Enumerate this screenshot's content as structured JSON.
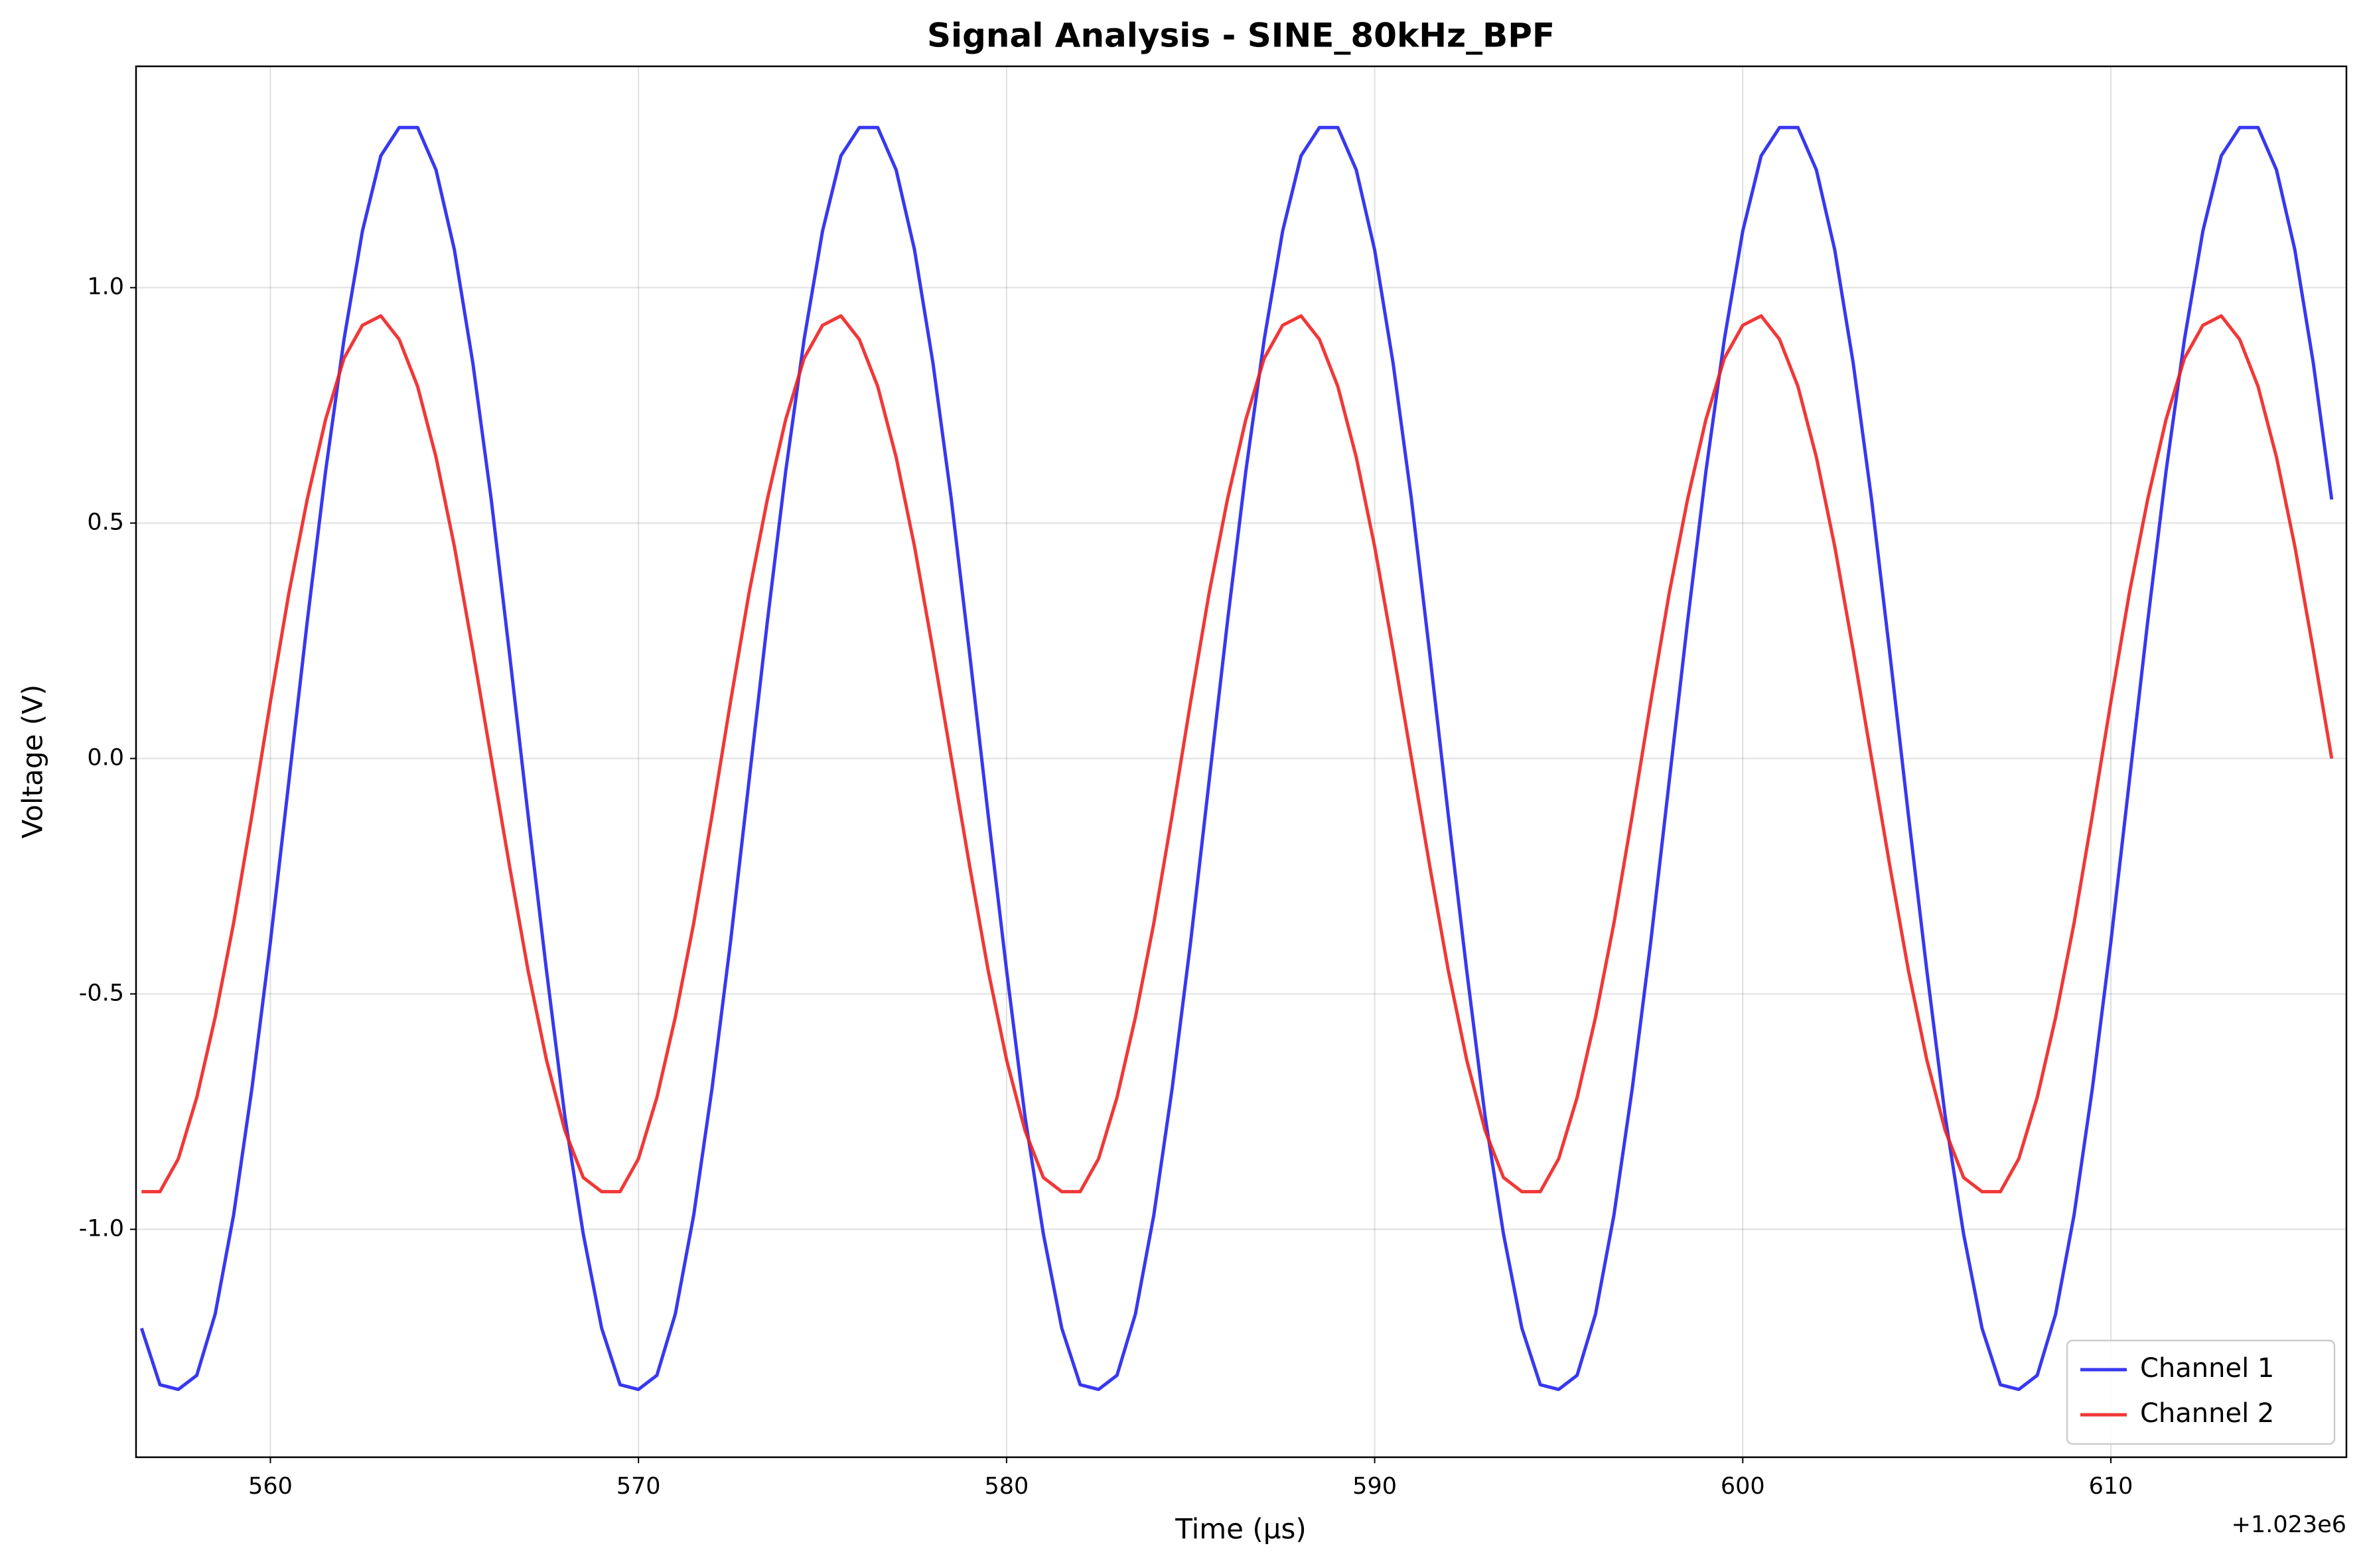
{
  "chart_data": {
    "type": "line",
    "title": "Signal Analysis - SINE_80kHz_BPF",
    "x_label": "Time (µs)",
    "y_label": "Voltage (V)",
    "x_offset_label": "+1.023e6",
    "x": [
      1023556.5,
      1023557,
      1023557.5,
      1023558,
      1023558.5,
      1023559,
      1023559.5,
      1023560,
      1023560.5,
      1023561,
      1023561.5,
      1023562,
      1023562.5,
      1023563,
      1023563.5,
      1023564,
      1023564.5,
      1023565,
      1023565.5,
      1023566,
      1023566.5,
      1023567,
      1023567.5,
      1023568,
      1023568.5,
      1023569,
      1023569.5,
      1023570,
      1023570.5,
      1023571,
      1023571.5,
      1023572,
      1023572.5,
      1023573,
      1023573.5,
      1023574,
      1023574.5,
      1023575,
      1023575.5,
      1023576,
      1023576.5,
      1023577,
      1023577.5,
      1023578,
      1023578.5,
      1023579,
      1023579.5,
      1023580,
      1023580.5,
      1023581,
      1023581.5,
      1023582,
      1023582.5,
      1023583,
      1023583.5,
      1023584,
      1023584.5,
      1023585,
      1023585.5,
      1023586,
      1023586.5,
      1023587,
      1023587.5,
      1023588,
      1023588.5,
      1023589,
      1023589.5,
      1023590,
      1023590.5,
      1023591,
      1023591.5,
      1023592,
      1023592.5,
      1023593,
      1023593.5,
      1023594,
      1023594.5,
      1023595,
      1023595.5,
      1023596,
      1023596.5,
      1023597,
      1023597.5,
      1023598,
      1023598.5,
      1023599,
      1023599.5,
      1023600,
      1023600.5,
      1023601,
      1023601.5,
      1023602,
      1023602.5,
      1023603,
      1023603.5,
      1023604,
      1023604.5,
      1023605,
      1023605.5,
      1023606,
      1023606.5,
      1023607,
      1023607.5,
      1023608,
      1023608.5,
      1023609,
      1023609.5,
      1023610,
      1023610.5,
      1023611,
      1023611.5,
      1023612,
      1023612.5,
      1023613,
      1023613.5,
      1023614,
      1023614.5,
      1023615,
      1023615.5,
      1023616
    ],
    "series": [
      {
        "name": "Channel 1",
        "color": "#2222ee",
        "values": [
          -1.21,
          -1.33,
          -1.34,
          -1.31,
          -1.18,
          -0.97,
          -0.7,
          -0.39,
          -0.05,
          0.29,
          0.61,
          0.89,
          1.12,
          1.28,
          1.34,
          1.34,
          1.25,
          1.08,
          0.84,
          0.55,
          0.22,
          -0.12,
          -0.45,
          -0.76,
          -1.01,
          -1.21,
          -1.33,
          -1.34,
          -1.31,
          -1.18,
          -0.97,
          -0.7,
          -0.39,
          -0.05,
          0.29,
          0.61,
          0.89,
          1.12,
          1.28,
          1.34,
          1.34,
          1.25,
          1.08,
          0.84,
          0.55,
          0.22,
          -0.12,
          -0.45,
          -0.76,
          -1.01,
          -1.21,
          -1.33,
          -1.34,
          -1.31,
          -1.18,
          -0.97,
          -0.7,
          -0.39,
          -0.05,
          0.29,
          0.61,
          0.89,
          1.12,
          1.28,
          1.34,
          1.34,
          1.25,
          1.08,
          0.84,
          0.55,
          0.22,
          -0.12,
          -0.45,
          -0.76,
          -1.01,
          -1.21,
          -1.33,
          -1.34,
          -1.31,
          -1.18,
          -0.97,
          -0.7,
          -0.39,
          -0.05,
          0.29,
          0.61,
          0.89,
          1.12,
          1.28,
          1.34,
          1.34,
          1.25,
          1.08,
          0.84,
          0.55,
          0.22,
          -0.12,
          -0.45,
          -0.76,
          -1.01,
          -1.21,
          -1.33,
          -1.34,
          -1.31,
          -1.18,
          -0.97,
          -0.7,
          -0.39,
          -0.05,
          0.29,
          0.61,
          0.89,
          1.12,
          1.28,
          1.34,
          1.34,
          1.25,
          1.08,
          0.84,
          0.55
        ]
      },
      {
        "name": "Channel 2",
        "color": "#ee2222",
        "values": [
          -0.92,
          -0.92,
          -0.85,
          -0.72,
          -0.55,
          -0.35,
          -0.12,
          0.12,
          0.35,
          0.55,
          0.72,
          0.85,
          0.92,
          0.94,
          0.89,
          0.79,
          0.64,
          0.45,
          0.23,
          0,
          -0.23,
          -0.45,
          -0.64,
          -0.79,
          -0.89,
          -0.92,
          -0.92,
          -0.85,
          -0.72,
          -0.55,
          -0.35,
          -0.12,
          0.12,
          0.35,
          0.55,
          0.72,
          0.85,
          0.92,
          0.94,
          0.89,
          0.79,
          0.64,
          0.45,
          0.23,
          0,
          -0.23,
          -0.45,
          -0.64,
          -0.79,
          -0.89,
          -0.92,
          -0.92,
          -0.85,
          -0.72,
          -0.55,
          -0.35,
          -0.12,
          0.12,
          0.35,
          0.55,
          0.72,
          0.85,
          0.92,
          0.94,
          0.89,
          0.79,
          0.64,
          0.45,
          0.23,
          0,
          -0.23,
          -0.45,
          -0.64,
          -0.79,
          -0.89,
          -0.92,
          -0.92,
          -0.85,
          -0.72,
          -0.55,
          -0.35,
          -0.12,
          0.12,
          0.35,
          0.55,
          0.72,
          0.85,
          0.92,
          0.94,
          0.89,
          0.79,
          0.64,
          0.45,
          0.23,
          0,
          -0.23,
          -0.45,
          -0.64,
          -0.79,
          -0.89,
          -0.92,
          -0.92,
          -0.85,
          -0.72,
          -0.55,
          -0.35,
          -0.12,
          0.12,
          0.35,
          0.55,
          0.72,
          0.85,
          0.92,
          0.94,
          0.89,
          0.79,
          0.64,
          0.45,
          0.23,
          0
        ]
      }
    ],
    "xlim": [
      1023556.35,
      1023616.4
    ],
    "xticks": [
      {
        "value": 1023560,
        "label": "560"
      },
      {
        "value": 1023570,
        "label": "570"
      },
      {
        "value": 1023580,
        "label": "580"
      },
      {
        "value": 1023590,
        "label": "590"
      },
      {
        "value": 1023600,
        "label": "600"
      },
      {
        "value": 1023610,
        "label": "610"
      }
    ],
    "ylim": [
      -1.484,
      1.47
    ],
    "yticks": [
      {
        "value": -1,
        "label": "-1.0"
      },
      -0.5,
      {
        "value": 0,
        "label": "0.0"
      },
      0.5,
      {
        "value": 1,
        "label": "1.0"
      }
    ],
    "grid": true,
    "legend": "lower right"
  }
}
